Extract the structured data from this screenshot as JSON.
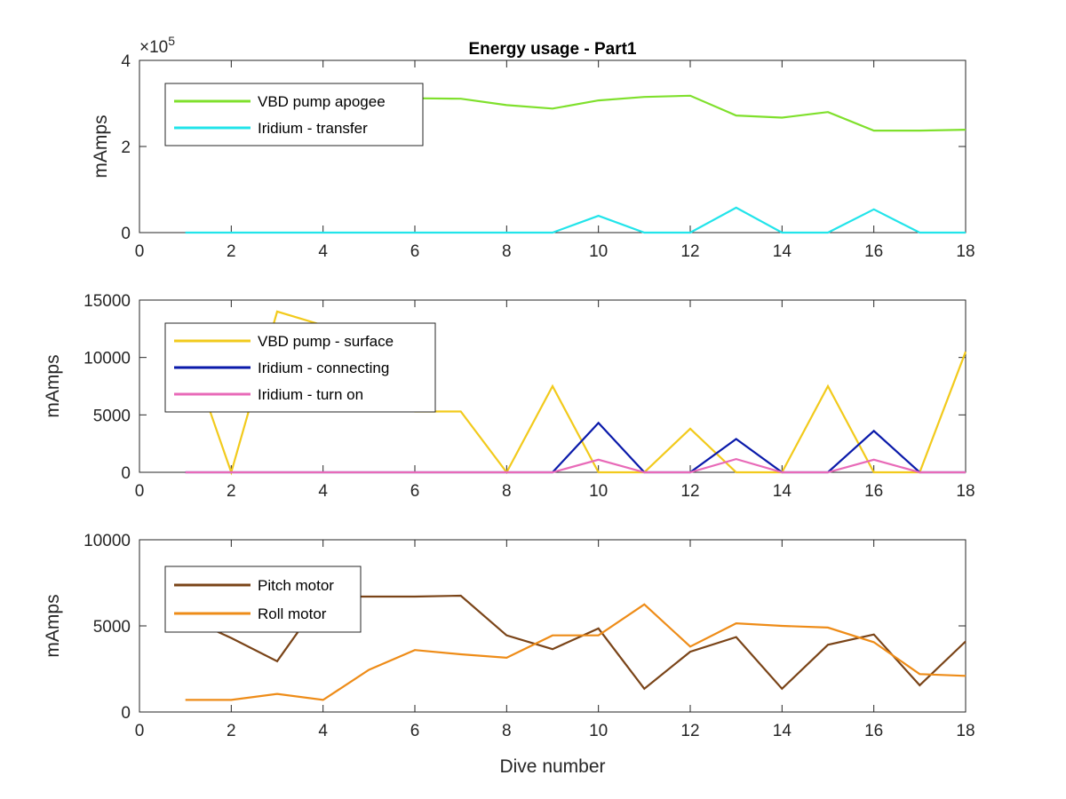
{
  "colors": {
    "vbd_apogee": "#7fe02c",
    "iridium_transfer": "#22e4ea",
    "vbd_surface": "#f2ca1c",
    "iridium_connecting": "#0a1aaa",
    "iridium_turn_on": "#e86ab8",
    "pitch_motor": "#7a4418",
    "roll_motor": "#ee8c18"
  },
  "chart_data": [
    {
      "type": "line",
      "title": "Energy usage - Part1",
      "xlabel": "",
      "ylabel": "mAmps",
      "xlim": [
        0,
        18
      ],
      "ylim": [
        0,
        400000
      ],
      "xticks": [
        "0",
        "2",
        "4",
        "6",
        "8",
        "10",
        "12",
        "14",
        "16",
        "18"
      ],
      "yticks": [
        "0",
        "2",
        "4"
      ],
      "ytick_values": [
        0,
        200000,
        400000
      ],
      "exponent_label": "×10",
      "exponent_power": "5",
      "legend_position": "top-left",
      "x": [
        1,
        2,
        3,
        4,
        5,
        6,
        7,
        8,
        9,
        10,
        11,
        12,
        13,
        14,
        15,
        16,
        17,
        18
      ],
      "series": [
        {
          "name": "VBD pump apogee",
          "color_key": "vbd_apogee",
          "values": [
            318000,
            330000,
            325000,
            320000,
            315000,
            312000,
            311000,
            296000,
            288000,
            307000,
            315000,
            318000,
            272000,
            267000,
            280000,
            237000,
            237000,
            239000
          ]
        },
        {
          "name": "Iridium - transfer",
          "color_key": "iridium_transfer",
          "values": [
            0,
            0,
            0,
            0,
            0,
            0,
            0,
            0,
            0,
            39000,
            0,
            0,
            58000,
            0,
            0,
            54000,
            0,
            0
          ]
        }
      ]
    },
    {
      "type": "line",
      "title": "",
      "xlabel": "",
      "ylabel": "mAmps",
      "xlim": [
        0,
        18
      ],
      "ylim": [
        0,
        15000
      ],
      "xticks": [
        "0",
        "2",
        "4",
        "6",
        "8",
        "10",
        "12",
        "14",
        "16",
        "18"
      ],
      "yticks": [
        "0",
        "5000",
        "10000",
        "15000"
      ],
      "ytick_values": [
        0,
        5000,
        10000,
        15000
      ],
      "legend_position": "top-left",
      "x": [
        1,
        2,
        3,
        4,
        5,
        6,
        7,
        8,
        9,
        10,
        11,
        12,
        13,
        14,
        15,
        16,
        17,
        18
      ],
      "series": [
        {
          "name": "VBD pump - surface",
          "color_key": "vbd_surface",
          "values": [
            11500,
            0,
            14000,
            12800,
            9000,
            5300,
            5300,
            0,
            7500,
            0,
            0,
            3800,
            0,
            0,
            7500,
            0,
            0,
            10500
          ]
        },
        {
          "name": "Iridium - connecting",
          "color_key": "iridium_connecting",
          "values": [
            0,
            0,
            0,
            0,
            0,
            0,
            0,
            0,
            0,
            4300,
            0,
            0,
            2900,
            0,
            0,
            3600,
            0,
            0
          ]
        },
        {
          "name": "Iridium - turn on",
          "color_key": "iridium_turn_on",
          "values": [
            0,
            0,
            0,
            0,
            0,
            0,
            0,
            0,
            0,
            1100,
            0,
            0,
            1150,
            0,
            0,
            1100,
            0,
            0
          ]
        }
      ]
    },
    {
      "type": "line",
      "title": "",
      "xlabel": "Dive number",
      "ylabel": "mAmps",
      "xlim": [
        0,
        18
      ],
      "ylim": [
        0,
        10000
      ],
      "xticks": [
        "0",
        "2",
        "4",
        "6",
        "8",
        "10",
        "12",
        "14",
        "16",
        "18"
      ],
      "yticks": [
        "0",
        "5000",
        "10000"
      ],
      "ytick_values": [
        0,
        5000,
        10000
      ],
      "legend_position": "top-left",
      "x": [
        1,
        2,
        3,
        4,
        5,
        6,
        7,
        8,
        9,
        10,
        11,
        12,
        13,
        14,
        15,
        16,
        17,
        18
      ],
      "series": [
        {
          "name": "Pitch motor",
          "color_key": "pitch_motor",
          "values": [
            5500,
            4300,
            2950,
            6700,
            6700,
            6700,
            6750,
            4450,
            3650,
            4850,
            1350,
            3500,
            4350,
            1350,
            3900,
            4500,
            1550,
            4100
          ]
        },
        {
          "name": "Roll motor",
          "color_key": "roll_motor",
          "values": [
            700,
            700,
            1050,
            700,
            2450,
            3600,
            3350,
            3150,
            4450,
            4450,
            6250,
            3800,
            5150,
            5000,
            4900,
            4050,
            2200,
            2100
          ]
        }
      ]
    }
  ]
}
